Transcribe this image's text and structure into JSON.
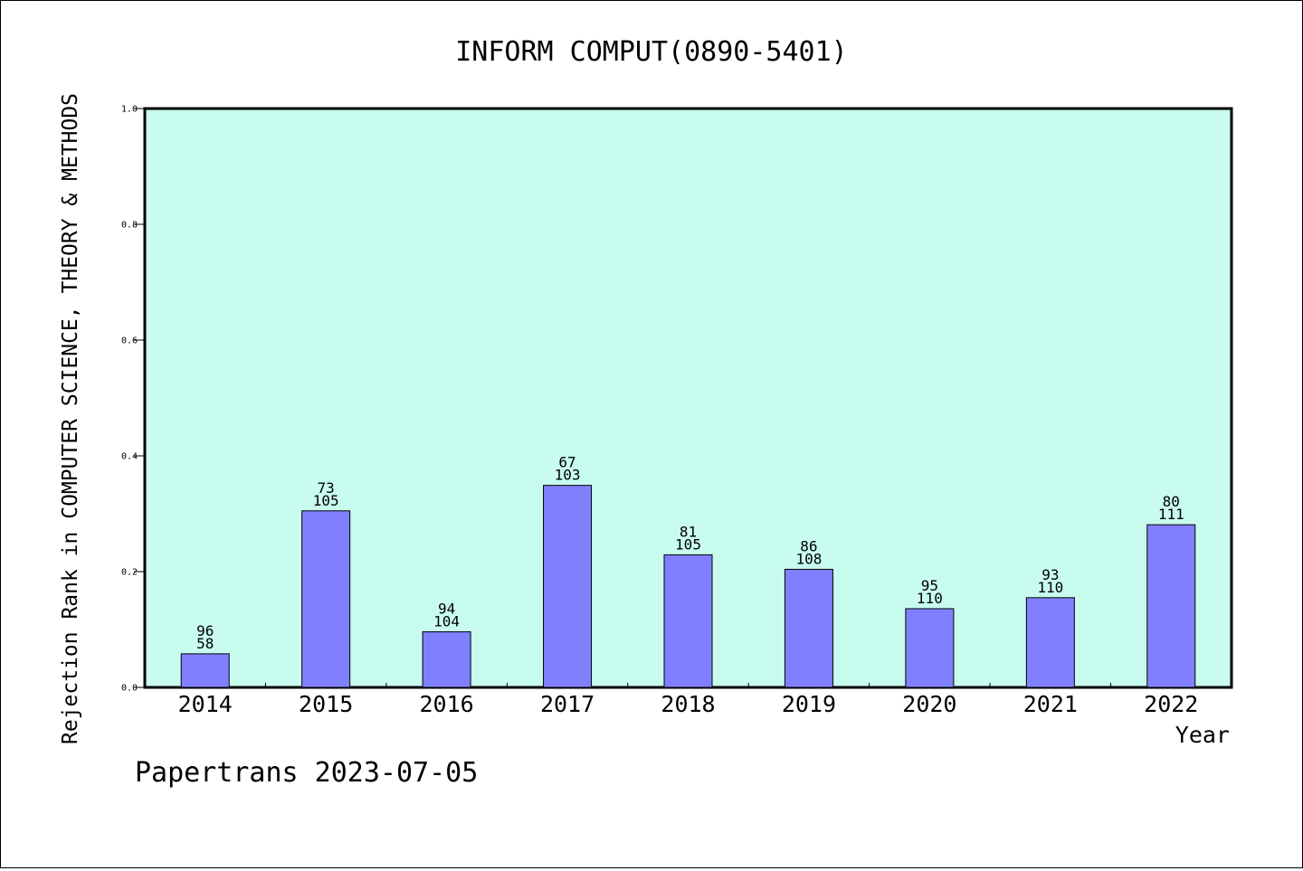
{
  "colors": {
    "plot_background": "#c8fcee",
    "bar_fill": "#8080ff",
    "bar_stroke": "#000000",
    "axis": "#000000"
  },
  "chart_data": {
    "type": "bar",
    "title": "INFORM COMPUT(0890-5401)",
    "xlabel": "Year",
    "ylabel": "Rejection Rank in COMPUTER SCIENCE, THEORY & METHODS",
    "categories": [
      "2014",
      "2015",
      "2016",
      "2017",
      "2018",
      "2019",
      "2020",
      "2021",
      "2022"
    ],
    "values": [
      0.058,
      0.305,
      0.096,
      0.349,
      0.229,
      0.204,
      0.136,
      0.155,
      0.281
    ],
    "label_top": [
      "96",
      "73",
      "94",
      "67",
      "81",
      "86",
      "95",
      "93",
      "80"
    ],
    "label_bottom": [
      "58",
      "105",
      "104",
      "103",
      "105",
      "108",
      "110",
      "110",
      "111"
    ],
    "ylim": [
      0,
      1.0
    ],
    "yticks": [
      "0.0",
      "0.2",
      "0.4",
      "0.6",
      "0.8",
      "1.0"
    ],
    "grid": false,
    "legend": "none"
  },
  "footer": {
    "source": "Papertrans 2023-07-05"
  }
}
